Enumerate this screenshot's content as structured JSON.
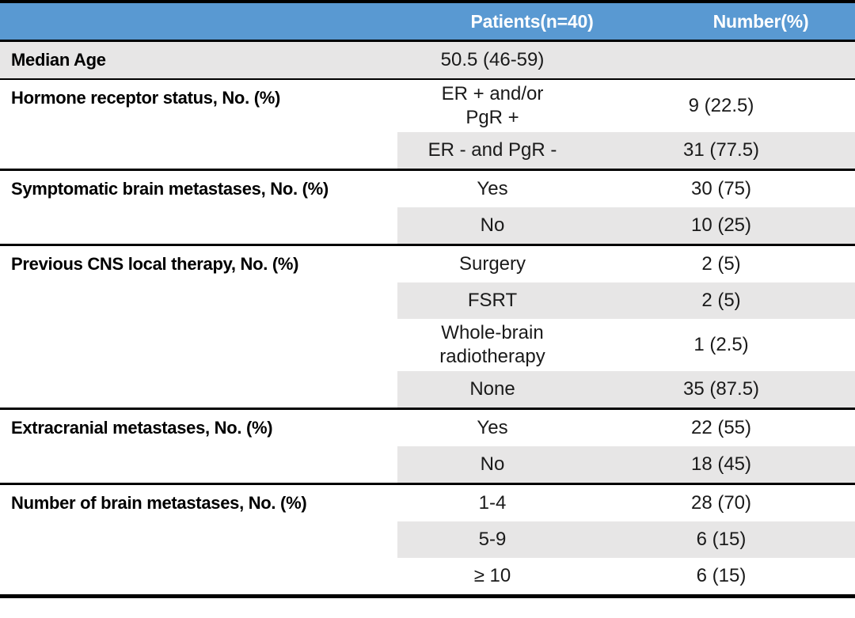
{
  "table": {
    "header": {
      "col2": "Patients(n=40)",
      "col3": "Number(%)"
    },
    "colors": {
      "header_bg": "#5999D2",
      "header_text": "#FFFFFF",
      "band": "#E7E6E6",
      "border": "#000000",
      "text": "#1A1A1A"
    },
    "sections": [
      {
        "label": "Median Age",
        "rows": [
          {
            "patients": "50.5 (46-59)",
            "number": ""
          }
        ]
      },
      {
        "label": "Hormone receptor status, No. (%)",
        "rows": [
          {
            "patients": "ER + and/or\nPgR +",
            "number": "9 (22.5)"
          },
          {
            "patients": "ER - and PgR -",
            "number": "31 (77.5)"
          }
        ]
      },
      {
        "label": "Symptomatic brain metastases, No. (%)",
        "rows": [
          {
            "patients": "Yes",
            "number": "30 (75)"
          },
          {
            "patients": "No",
            "number": "10 (25)"
          }
        ]
      },
      {
        "label": "Previous CNS local therapy, No. (%)",
        "rows": [
          {
            "patients": "Surgery",
            "number": "2 (5)"
          },
          {
            "patients": "FSRT",
            "number": "2 (5)"
          },
          {
            "patients": "Whole-brain\nradiotherapy",
            "number": "1 (2.5)"
          },
          {
            "patients": "None",
            "number": "35 (87.5)"
          }
        ]
      },
      {
        "label": "Extracranial metastases, No. (%)",
        "rows": [
          {
            "patients": "Yes",
            "number": "22 (55)"
          },
          {
            "patients": "No",
            "number": "18 (45)"
          }
        ]
      },
      {
        "label": "Number of brain metastases, No. (%)",
        "rows": [
          {
            "patients": "1-4",
            "number": "28 (70)"
          },
          {
            "patients": "5-9",
            "number": "6 (15)"
          },
          {
            "patients": "≥ 10",
            "number": "6 (15)"
          }
        ]
      }
    ]
  }
}
